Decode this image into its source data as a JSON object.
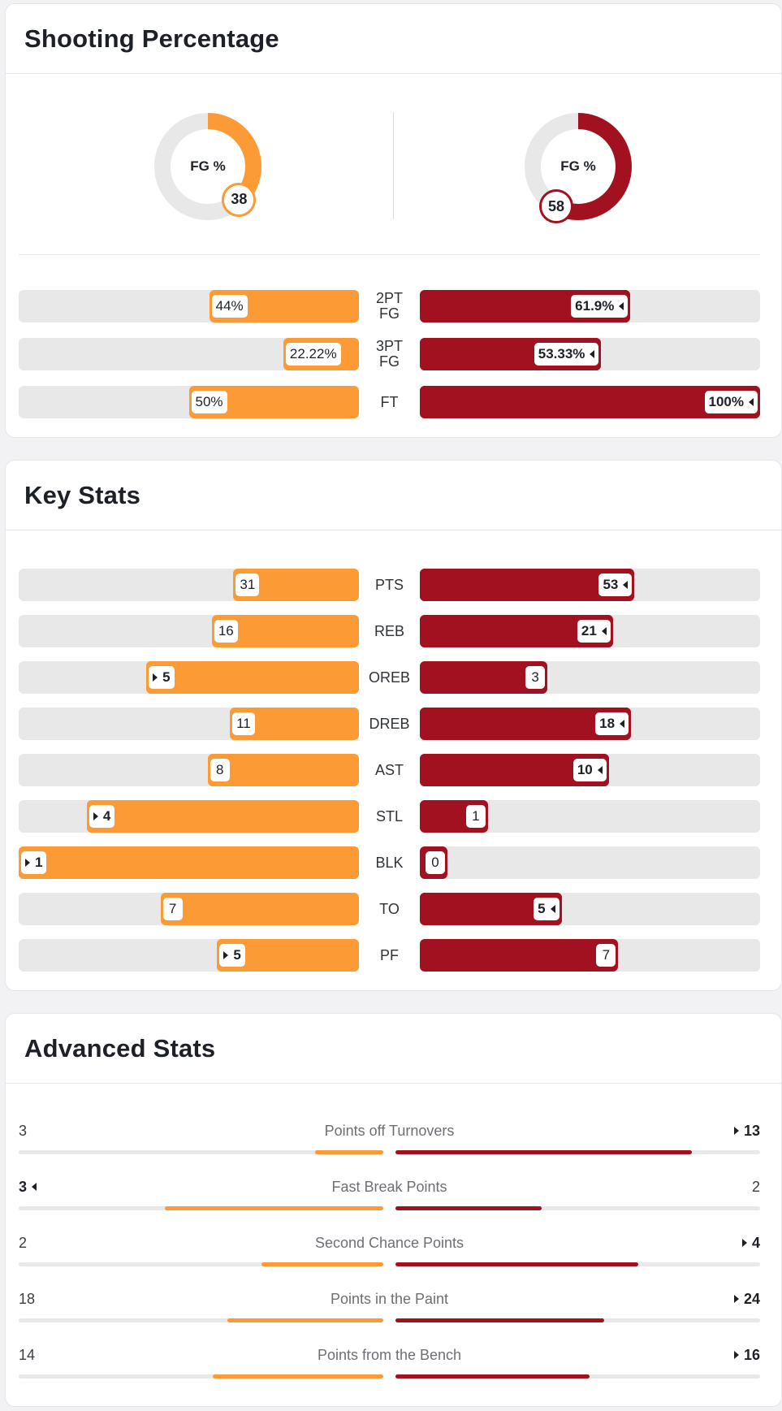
{
  "colors": {
    "home": "#fc9a35",
    "away": "#a1111f",
    "track": "#e8e8e8"
  },
  "shooting": {
    "title": "Shooting Percentage",
    "donuts": [
      {
        "label": "FG %",
        "value": 38,
        "team": "home"
      },
      {
        "label": "FG %",
        "value": 58,
        "team": "away"
      }
    ],
    "rows": [
      {
        "label": "2PT\nFG",
        "home": 44,
        "away": 61.9,
        "home_text": "44%",
        "away_text": "61.9%",
        "lead": "away"
      },
      {
        "label": "3PT\nFG",
        "home": 22.22,
        "away": 53.33,
        "home_text": "22.22%",
        "away_text": "53.33%",
        "lead": "away"
      },
      {
        "label": "FT",
        "home": 50,
        "away": 100,
        "home_text": "50%",
        "away_text": "100%",
        "lead": "away"
      }
    ]
  },
  "key_stats": {
    "title": "Key Stats",
    "rows": [
      {
        "label": "PTS",
        "home": 31,
        "away": 53,
        "lead": "away"
      },
      {
        "label": "REB",
        "home": 16,
        "away": 21,
        "lead": "away"
      },
      {
        "label": "OREB",
        "home": 5,
        "away": 3,
        "lead": "home"
      },
      {
        "label": "DREB",
        "home": 11,
        "away": 18,
        "lead": "away"
      },
      {
        "label": "AST",
        "home": 8,
        "away": 10,
        "lead": "away"
      },
      {
        "label": "STL",
        "home": 4,
        "away": 1,
        "lead": "home"
      },
      {
        "label": "BLK",
        "home": 1,
        "away": 0,
        "lead": "home"
      },
      {
        "label": "TO",
        "home": 7,
        "away": 5,
        "lead": "away"
      },
      {
        "label": "PF",
        "home": 5,
        "away": 7,
        "lead": "home"
      }
    ]
  },
  "advanced": {
    "title": "Advanced Stats",
    "rows": [
      {
        "label": "Points off Turnovers",
        "home": 3,
        "away": 13,
        "lead": "away"
      },
      {
        "label": "Fast Break Points",
        "home": 3,
        "away": 2,
        "lead": "home"
      },
      {
        "label": "Second Chance Points",
        "home": 2,
        "away": 4,
        "lead": "away"
      },
      {
        "label": "Points in the Paint",
        "home": 18,
        "away": 24,
        "lead": "away"
      },
      {
        "label": "Points from the Bench",
        "home": 14,
        "away": 16,
        "lead": "away"
      }
    ]
  }
}
